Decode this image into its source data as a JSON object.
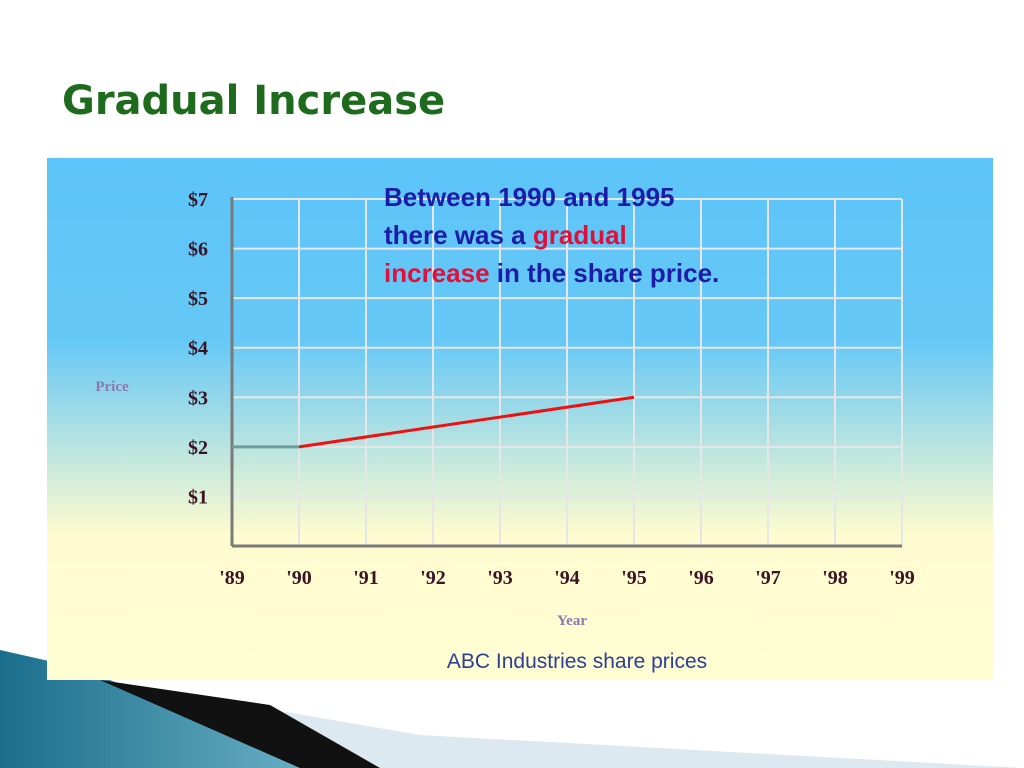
{
  "slide_title": "Gradual Increase",
  "chart_data": {
    "type": "line",
    "title": "ABC Industries share prices",
    "xlabel": "Year",
    "ylabel": "Price",
    "annotation": [
      [
        {
          "text": "Between 1990 and 1995",
          "color": "#1c1ca8"
        }
      ],
      [
        {
          "text": "there was a ",
          "color": "#1c1ca8"
        },
        {
          "text": "gradual",
          "color": "#e0103c"
        }
      ],
      [
        {
          "text": "increase",
          "color": "#e0103c"
        },
        {
          "text": " in the share price.",
          "color": "#1c1ca8"
        }
      ]
    ],
    "series": [
      {
        "color": "#6f9c9a",
        "x": [
          1989,
          1990
        ],
        "values": [
          2,
          2
        ]
      },
      {
        "color": "#ee1111",
        "x": [
          1990,
          1995
        ],
        "values": [
          2,
          3
        ]
      }
    ],
    "xlim": [
      1989,
      1999
    ],
    "xticks": [
      {
        "value": 1989,
        "label": "'89"
      },
      {
        "value": 1990,
        "label": "'90"
      },
      {
        "value": 1991,
        "label": "'91"
      },
      {
        "value": 1992,
        "label": "'92"
      },
      {
        "value": 1993,
        "label": "'93"
      },
      {
        "value": 1994,
        "label": "'94"
      },
      {
        "value": 1995,
        "label": "'95"
      },
      {
        "value": 1996,
        "label": "'96"
      },
      {
        "value": 1997,
        "label": "'97"
      },
      {
        "value": 1998,
        "label": "'98"
      },
      {
        "value": 1999,
        "label": "'99"
      }
    ],
    "ylim": [
      0,
      7
    ],
    "yticks": [
      {
        "value": 1,
        "label": "$1"
      },
      {
        "value": 2,
        "label": "$2"
      },
      {
        "value": 3,
        "label": "$3"
      },
      {
        "value": 4,
        "label": "$4"
      },
      {
        "value": 5,
        "label": "$5"
      },
      {
        "value": 6,
        "label": "$6"
      },
      {
        "value": 7,
        "label": "$7"
      }
    ],
    "grid": true
  }
}
